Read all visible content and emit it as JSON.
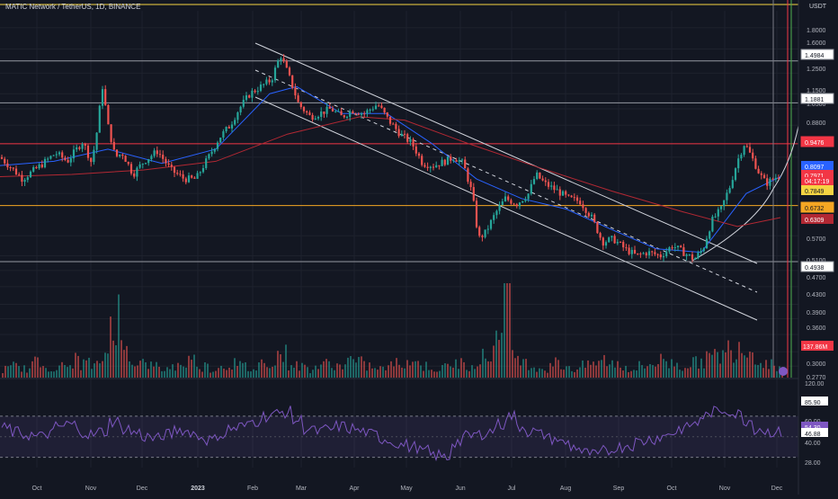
{
  "header": {
    "symbol": "MATIC Network / TetherUS, 1D, BINANCE",
    "currency": "USDT"
  },
  "chart_data": {
    "type": "candlestick",
    "title": "MATIC Network / TetherUS, 1D, BINANCE",
    "unit": "USDT",
    "price_axis": {
      "scale": "log",
      "range": [
        0.26,
        1.9
      ],
      "ticks": [
        "1.8000",
        "1.6000",
        "1.4000",
        "1.2500",
        "1.1500",
        "1.0500",
        "0.8800",
        "0.7200",
        "0.5700",
        "0.5100",
        "0.4700",
        "0.4300",
        "0.3900",
        "0.3600",
        "0.3300",
        "0.3000",
        "0.2770"
      ]
    },
    "time_axis": {
      "labels": [
        "Oct",
        "Nov",
        "Dec",
        "2023",
        "Feb",
        "Mar",
        "Apr",
        "May",
        "Jun",
        "Jul",
        "Aug",
        "Sep",
        "Oct",
        "Nov",
        "Dec"
      ]
    },
    "horizontal_levels": [
      {
        "value": 1.4984,
        "label": "1.4984",
        "color": "#9598a1"
      },
      {
        "value": 1.1881,
        "label": "1.1881",
        "color": "#9598a1"
      },
      {
        "value": 0.9476,
        "label": "0.9476",
        "color": "#f23645"
      },
      {
        "value": 0.6732,
        "label": "0.6732",
        "color": "#f5a623"
      },
      {
        "value": 0.4938,
        "label": "0.4938",
        "color": "#9598a1"
      }
    ],
    "price_labels": [
      {
        "value": 0.8097,
        "label": "0.8097",
        "color": "#2962ff"
      },
      {
        "value": 0.7971,
        "label": "0.7971",
        "color": "#f23645"
      },
      {
        "value": 0.7849,
        "label": "0.7849",
        "color": "#f5d442"
      },
      {
        "value": 0.6309,
        "label": "0.6309",
        "color": "#b22833"
      }
    ],
    "countdown": "04:17:19",
    "volume_label": "137.86M",
    "price_series": [
      [
        0,
        0.88
      ],
      [
        10,
        0.84
      ],
      [
        25,
        0.78
      ],
      [
        45,
        0.84
      ],
      [
        62,
        0.9
      ],
      [
        75,
        0.86
      ],
      [
        92,
        0.96
      ],
      [
        102,
        0.85
      ],
      [
        108,
        1.02
      ],
      [
        114,
        1.3
      ],
      [
        120,
        1.05
      ],
      [
        128,
        0.88
      ],
      [
        136,
        0.9
      ],
      [
        148,
        0.8
      ],
      [
        160,
        0.86
      ],
      [
        175,
        0.91
      ],
      [
        190,
        0.82
      ],
      [
        205,
        0.78
      ],
      [
        218,
        0.78
      ],
      [
        232,
        0.88
      ],
      [
        244,
        0.98
      ],
      [
        256,
        1.05
      ],
      [
        266,
        1.15
      ],
      [
        278,
        1.25
      ],
      [
        290,
        1.3
      ],
      [
        302,
        1.35
      ],
      [
        312,
        1.55
      ],
      [
        320,
        1.4
      ],
      [
        332,
        1.18
      ],
      [
        345,
        1.1
      ],
      [
        355,
        1.12
      ],
      [
        368,
        1.15
      ],
      [
        380,
        1.1
      ],
      [
        392,
        1.14
      ],
      [
        405,
        1.12
      ],
      [
        420,
        1.18
      ],
      [
        432,
        1.08
      ],
      [
        445,
        1.0
      ],
      [
        458,
        0.95
      ],
      [
        470,
        0.85
      ],
      [
        482,
        0.84
      ],
      [
        495,
        0.86
      ],
      [
        505,
        0.88
      ],
      [
        515,
        0.85
      ],
      [
        525,
        0.72
      ],
      [
        532,
        0.56
      ],
      [
        540,
        0.58
      ],
      [
        552,
        0.65
      ],
      [
        562,
        0.7
      ],
      [
        575,
        0.68
      ],
      [
        588,
        0.72
      ],
      [
        596,
        0.8
      ],
      [
        606,
        0.76
      ],
      [
        620,
        0.73
      ],
      [
        632,
        0.7
      ],
      [
        645,
        0.69
      ],
      [
        658,
        0.63
      ],
      [
        670,
        0.55
      ],
      [
        682,
        0.56
      ],
      [
        695,
        0.53
      ],
      [
        708,
        0.51
      ],
      [
        720,
        0.52
      ],
      [
        735,
        0.51
      ],
      [
        748,
        0.54
      ],
      [
        760,
        0.52
      ],
      [
        772,
        0.5
      ],
      [
        782,
        0.53
      ],
      [
        792,
        0.62
      ],
      [
        802,
        0.66
      ],
      [
        812,
        0.75
      ],
      [
        820,
        0.86
      ],
      [
        828,
        0.95
      ],
      [
        836,
        0.88
      ],
      [
        845,
        0.8
      ],
      [
        852,
        0.76
      ],
      [
        860,
        0.78
      ],
      [
        868,
        0.8
      ]
    ],
    "ma_series": [
      {
        "name": "",
        "color": "#2962ff",
        "points": [
          [
            0,
            0.84
          ],
          [
            60,
            0.86
          ],
          [
            120,
            0.92
          ],
          [
            180,
            0.85
          ],
          [
            240,
            0.92
          ],
          [
            300,
            1.25
          ],
          [
            330,
            1.3
          ],
          [
            380,
            1.12
          ],
          [
            430,
            1.12
          ],
          [
            480,
            0.95
          ],
          [
            530,
            0.78
          ],
          [
            580,
            0.7
          ],
          [
            630,
            0.66
          ],
          [
            680,
            0.59
          ],
          [
            730,
            0.53
          ],
          [
            780,
            0.52
          ],
          [
            830,
            0.72
          ],
          [
            868,
            0.79
          ]
        ]
      },
      {
        "name": "",
        "color": "#b22833",
        "points": [
          [
            0,
            0.79
          ],
          [
            80,
            0.8
          ],
          [
            160,
            0.82
          ],
          [
            240,
            0.86
          ],
          [
            320,
            1.0
          ],
          [
            400,
            1.1
          ],
          [
            450,
            1.08
          ],
          [
            520,
            0.95
          ],
          [
            600,
            0.83
          ],
          [
            680,
            0.73
          ],
          [
            760,
            0.65
          ],
          [
            820,
            0.6
          ],
          [
            868,
            0.63
          ]
        ]
      }
    ],
    "trend_lines": [
      {
        "from": [
          284,
          48
        ],
        "to": [
          842,
          293
        ],
        "color": "#d1d4dc",
        "dash": false
      },
      {
        "from": [
          284,
          78
        ],
        "to": [
          842,
          325
        ],
        "color": "#d1d4dc",
        "dash": true
      },
      {
        "from": [
          284,
          108
        ],
        "to": [
          842,
          356
        ],
        "color": "#d1d4dc",
        "dash": false
      }
    ],
    "rsi": {
      "levels": [
        "120.00",
        "85.90",
        "60.00",
        "54.30",
        "46.88",
        "40.00",
        "28.00"
      ],
      "values": [
        58,
        54,
        52,
        50,
        53,
        60,
        62,
        55,
        52,
        55,
        65,
        58,
        54,
        50,
        48,
        52,
        57,
        55,
        50,
        47,
        52,
        58,
        60,
        65,
        70,
        72,
        74,
        66,
        58,
        55,
        57,
        60,
        58,
        55,
        52,
        48,
        45,
        42,
        40,
        36,
        32,
        30,
        45,
        50,
        52,
        55,
        62,
        70,
        60,
        55,
        52,
        48,
        44,
        40,
        34,
        32,
        36,
        40,
        42,
        45,
        48,
        50,
        54,
        58,
        62,
        70,
        74,
        76,
        72,
        66,
        58,
        55,
        54
      ]
    },
    "volume": [
      3,
      4,
      3,
      5,
      4,
      3,
      4,
      6,
      5,
      4,
      8,
      22,
      10,
      6,
      5,
      4,
      3,
      4,
      5,
      6,
      4,
      3,
      4,
      5,
      4,
      3,
      5,
      6,
      8,
      5,
      4,
      3,
      4,
      5,
      4,
      6,
      5,
      4,
      3,
      4,
      5,
      6,
      5,
      4,
      3,
      4,
      5,
      4,
      6,
      7,
      14,
      30,
      8,
      5,
      4,
      3,
      5,
      4,
      3,
      4,
      5,
      6,
      5,
      4,
      3,
      4,
      5,
      6,
      5,
      4,
      5,
      6,
      7,
      8,
      10,
      12,
      9,
      6,
      5,
      4
    ]
  }
}
